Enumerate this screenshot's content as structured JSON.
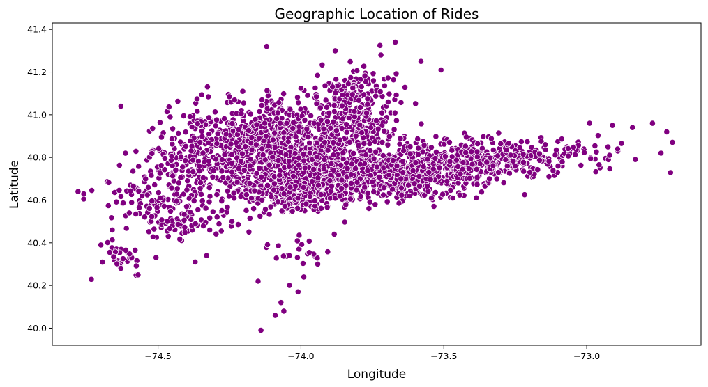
{
  "chart_data": {
    "type": "scatter",
    "title": "Geographic Location of Rides",
    "xlabel": "Longitude",
    "ylabel": "Latitude",
    "xlim": [
      -74.87,
      -72.6
    ],
    "ylim": [
      39.92,
      41.43
    ],
    "xticks": [
      {
        "value": -74.5,
        "label": "−74.5"
      },
      {
        "value": -74.0,
        "label": "−74.0"
      },
      {
        "value": -73.5,
        "label": "−73.5"
      },
      {
        "value": -73.0,
        "label": "−73.0"
      }
    ],
    "yticks": [
      {
        "value": 40.0,
        "label": "40.0"
      },
      {
        "value": 40.2,
        "label": "40.2"
      },
      {
        "value": 40.4,
        "label": "40.4"
      },
      {
        "value": 40.6,
        "label": "40.6"
      },
      {
        "value": 40.8,
        "label": "40.8"
      },
      {
        "value": 41.0,
        "label": "41.0"
      },
      {
        "value": 41.2,
        "label": "41.2"
      },
      {
        "value": 41.4,
        "label": "41.4"
      }
    ],
    "grid": false,
    "legend": "none",
    "colors": {
      "points": "#800080",
      "point_edge": "#ffffff"
    },
    "series": [
      {
        "points": [
          [
            -74.78,
            40.64
          ],
          [
            -74.14,
            39.99
          ],
          [
            -74.12,
            41.32
          ],
          [
            -74.15,
            40.22
          ],
          [
            -73.88,
            41.3
          ],
          [
            -73.67,
            41.34
          ],
          [
            -73.72,
            41.28
          ],
          [
            -73.58,
            41.25
          ],
          [
            -73.51,
            41.21
          ],
          [
            -74.63,
            41.04
          ],
          [
            -72.99,
            40.96
          ],
          [
            -72.77,
            40.96
          ],
          [
            -72.72,
            40.92
          ],
          [
            -72.84,
            40.94
          ],
          [
            -72.91,
            40.95
          ],
          [
            -72.74,
            40.82
          ],
          [
            -72.83,
            40.79
          ],
          [
            -72.92,
            40.81
          ],
          [
            -74.09,
            40.06
          ],
          [
            -74.06,
            40.08
          ],
          [
            -74.07,
            40.12
          ],
          [
            -74.04,
            40.2
          ],
          [
            -74.01,
            40.17
          ],
          [
            -73.99,
            40.24
          ],
          [
            -74.63,
            40.28
          ],
          [
            -74.57,
            40.25
          ],
          [
            -74.7,
            40.39
          ],
          [
            -74.66,
            40.46
          ],
          [
            -74.33,
            40.34
          ],
          [
            -74.37,
            40.31
          ]
        ]
      }
    ]
  }
}
